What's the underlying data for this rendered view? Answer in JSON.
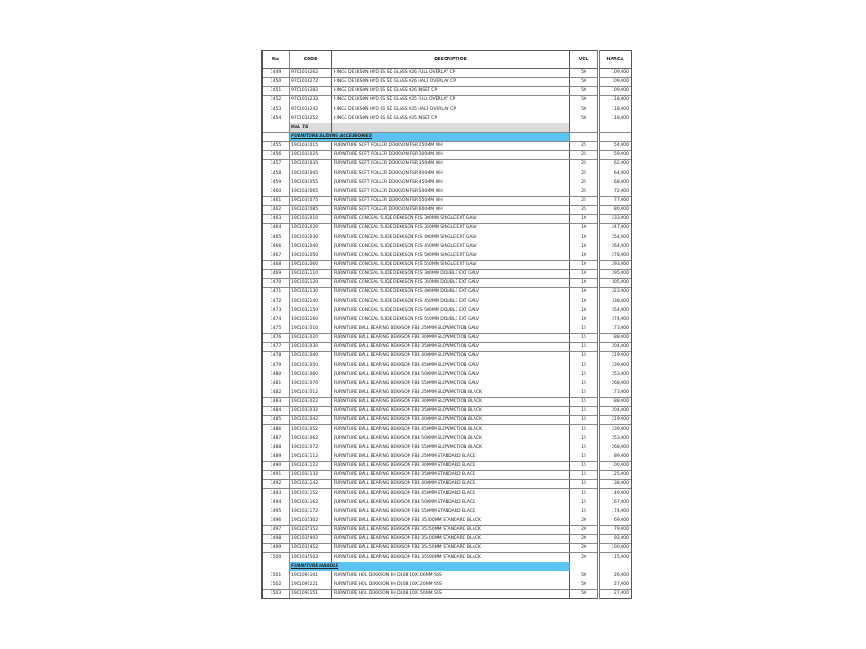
{
  "headers": {
    "no": "No",
    "code": "CODE",
    "description": "DESCRIPTION",
    "vol": "VOL",
    "harga": "HARGA"
  },
  "colors": {
    "highlight_text": "#e8202a",
    "section_bg": "#5cc4f2",
    "page_marker_bg": "#dcdcdc"
  },
  "rows": [
    {
      "no": "1449",
      "code": "9701018262",
      "desc": "HINGE DEKKSON HYD ES SD GLASS 026 FULL OVERLAY CP",
      "vol": "50",
      "harga": "109,000"
    },
    {
      "no": "1450",
      "code": "9701018272",
      "desc": "HINGE DEKKSON HYD ES SD GLASS 026 HALF OVERLAY CP",
      "vol": "50",
      "harga": "109,000"
    },
    {
      "no": "1451",
      "code": "9701018282",
      "desc": "HINGE DEKKSON HYD ES SD GLASS 026 INSET CP",
      "vol": "50",
      "harga": "109,000"
    },
    {
      "no": "1452",
      "code": "9701018232",
      "desc": "HINGE DEKKSON HYD ES SD GLASS 035 FULL OVERLAY CP",
      "vol": "50",
      "harga": "118,000"
    },
    {
      "no": "1453",
      "code": "9701018242",
      "desc": "HINGE DEKKSON HYD ES SD GLASS 035 HALF OVERLAY CP",
      "vol": "50",
      "harga": "118,000"
    },
    {
      "no": "1454",
      "code": "9701018252",
      "desc": "HINGE DEKKSON HYD ES SD GLASS 035 INSET CP",
      "vol": "50",
      "harga": "118,000"
    },
    {
      "type": "hal",
      "label": "Hal. 74"
    },
    {
      "type": "section",
      "label": "FURNITURE SLIDING ACCESSORIES"
    },
    {
      "no": "1455",
      "code": "1901031015",
      "desc": "FURNITURE SOFT ROLLER DEKKSON FSR 250MM WH",
      "vol": "25",
      "harga": "54,000"
    },
    {
      "no": "1456",
      "code": "1901031025",
      "desc": "FURNITURE SOFT ROLLER DEKKSON FSR 300MM WH",
      "vol": "25",
      "harga": "59,000"
    },
    {
      "no": "1457",
      "code": "1901031035",
      "desc": "FURNITURE SOFT ROLLER DEKKSON FSR 350MM WH",
      "vol": "25",
      "harga": "62,000"
    },
    {
      "no": "1458",
      "code": "1901031045",
      "desc": "FURNITURE SOFT ROLLER DEKKSON FSR 400MM WH",
      "vol": "25",
      "harga": "64,000"
    },
    {
      "no": "1459",
      "code": "1901031055",
      "desc": "FURNITURE SOFT ROLLER DEKKSON FSR 450MM WH",
      "vol": "25",
      "harga": "68,000"
    },
    {
      "no": "1460",
      "code": "1901031065",
      "desc": "FURNITURE SOFT ROLLER DEKKSON FSR 500MM WH",
      "vol": "25",
      "harga": "72,000"
    },
    {
      "no": "1461",
      "code": "1901031075",
      "desc": "FURNITURE SOFT ROLLER DEKKSON FSR 550MM WH",
      "vol": "25",
      "harga": "77,000"
    },
    {
      "no": "1462",
      "code": "1901031085",
      "desc": "FURNITURE SOFT ROLLER DEKKSON FSR 600MM WH",
      "vol": "25",
      "harga": "80,000"
    },
    {
      "no": "1463",
      "code": "1901032010",
      "desc": "FURNITURE CONCEAL SLIDE DEKKSON FCS 300MM SINGLE EXT GALV",
      "vol": "10",
      "harga": "233,000",
      "red": true
    },
    {
      "no": "1464",
      "code": "1901032020",
      "desc": "FURNITURE CONCEAL SLIDE DEKKSON FCS 350MM SINGLE EXT GALV",
      "vol": "10",
      "harga": "247,000",
      "red": true
    },
    {
      "no": "1465",
      "code": "1901032030",
      "desc": "FURNITURE CONCEAL SLIDE DEKKSON FCS 400MM SINGLE EXT GALV",
      "vol": "10",
      "harga": "254,000",
      "red": true
    },
    {
      "no": "1466",
      "code": "1901032040",
      "desc": "FURNITURE CONCEAL SLIDE DEKKSON FCS 450MM SINGLE EXT GALV",
      "vol": "10",
      "harga": "264,000",
      "red": true
    },
    {
      "no": "1467",
      "code": "1901032050",
      "desc": "FURNITURE CONCEAL SLIDE DEKKSON FCS 500MM SINGLE EXT GALV",
      "vol": "10",
      "harga": "278,000",
      "red": true
    },
    {
      "no": "1468",
      "code": "1901032060",
      "desc": "FURNITURE CONCEAL SLIDE DEKKSON FCS 550MM SINGLE EXT GALV",
      "vol": "10",
      "harga": "293,000",
      "red": true
    },
    {
      "no": "1469",
      "code": "1901032110",
      "desc": "FURNITURE CONCEAL SLIDE DEKKSON FCS 300MM DOUBLE EXT GALV",
      "vol": "10",
      "harga": "295,000",
      "red": true
    },
    {
      "no": "1470",
      "code": "1901032120",
      "desc": "FURNITURE CONCEAL SLIDE DEKKSON FCS 350MM DOUBLE EXT GALV",
      "vol": "10",
      "harga": "305,000",
      "red": true
    },
    {
      "no": "1471",
      "code": "1901032130",
      "desc": "FURNITURE CONCEAL SLIDE DEKKSON FCS 400MM DOUBLE EXT GALV",
      "vol": "10",
      "harga": "323,000",
      "red": true
    },
    {
      "no": "1472",
      "code": "1901032140",
      "desc": "FURNITURE CONCEAL SLIDE DEKKSON FCS 450MM DOUBLE EXT GALV",
      "vol": "10",
      "harga": "338,000",
      "red": true
    },
    {
      "no": "1473",
      "code": "1901032150",
      "desc": "FURNITURE CONCEAL SLIDE DEKKSON FCS 500MM DOUBLE EXT GALV",
      "vol": "10",
      "harga": "354,000",
      "red": true
    },
    {
      "no": "1474",
      "code": "1901032160",
      "desc": "FURNITURE CONCEAL SLIDE DEKKSON FCS 550MM DOUBLE EXT GALV",
      "vol": "10",
      "harga": "374,000",
      "red": true
    },
    {
      "no": "1475",
      "code": "1901033010",
      "desc": "FURNITURE BALL BEARING DEKKSON FBB 250MM SLOWMOTION GALV",
      "vol": "15",
      "harga": "173,000"
    },
    {
      "no": "1476",
      "code": "1901033020",
      "desc": "FURNITURE BALL BEARING DEKKSON FBB 300MM SLOWMOTION GALV",
      "vol": "15",
      "harga": "188,000"
    },
    {
      "no": "1477",
      "code": "1901033030",
      "desc": "FURNITURE BALL BEARING DEKKSON FBB 350MM SLOWMOTION GALV",
      "vol": "15",
      "harga": "204,000"
    },
    {
      "no": "1478",
      "code": "1901033040",
      "desc": "FURNITURE BALL BEARING DEKKSON FBB 400MM SLOWMOTION GALV",
      "vol": "15",
      "harga": "219,000"
    },
    {
      "no": "1479",
      "code": "1901033050",
      "desc": "FURNITURE BALL BEARING DEKKSON FBB 450MM SLOWMOTION GALV",
      "vol": "15",
      "harga": "239,000"
    },
    {
      "no": "1480",
      "code": "1901033060",
      "desc": "FURNITURE BALL BEARING DEKKSON FBB 500MM SLOWMOTION GALV",
      "vol": "15",
      "harga": "253,000"
    },
    {
      "no": "1481",
      "code": "1901033070",
      "desc": "FURNITURE BALL BEARING DEKKSON FBB 550MM SLOWMOTION GALV",
      "vol": "15",
      "harga": "268,000"
    },
    {
      "no": "1482",
      "code": "1901033012",
      "desc": "FURNITURE BALL BEARING DEKKSON FBB 250MM SLOWMOTION BLACK",
      "vol": "15",
      "harga": "173,000"
    },
    {
      "no": "1483",
      "code": "1901033022",
      "desc": "FURNITURE BALL BEARING DEKKSON FBB 300MM SLOWMOTION BLACK",
      "vol": "15",
      "harga": "188,000"
    },
    {
      "no": "1484",
      "code": "1901033032",
      "desc": "FURNITURE BALL BEARING DEKKSON FBB 350MM SLOWMOTION BLACK",
      "vol": "15",
      "harga": "204,000"
    },
    {
      "no": "1485",
      "code": "1901033042",
      "desc": "FURNITURE BALL BEARING DEKKSON FBB 400MM SLOWMOTION BLACK",
      "vol": "15",
      "harga": "219,000"
    },
    {
      "no": "1486",
      "code": "1901033052",
      "desc": "FURNITURE BALL BEARING DEKKSON FBB 450MM SLOWMOTION BLACK",
      "vol": "15",
      "harga": "239,000"
    },
    {
      "no": "1487",
      "code": "1901033062",
      "desc": "FURNITURE BALL BEARING DEKKSON FBB 500MM SLOWMOTION BLACK",
      "vol": "15",
      "harga": "253,000"
    },
    {
      "no": "1488",
      "code": "1901033072",
      "desc": "FURNITURE BALL BEARING DEKKSON FBB 550MM SLOWMOTION BLACK",
      "vol": "15",
      "harga": "268,000"
    },
    {
      "no": "1489",
      "code": "1901033112",
      "desc": "FURNITURE BALL BEARING DEKKSON FBB 250MM STANDARD BLACK",
      "vol": "15",
      "harga": "89,000"
    },
    {
      "no": "1490",
      "code": "1901033122",
      "desc": "FURNITURE BALL BEARING DEKKSON FBB 300MM STANDARD BLACK",
      "vol": "15",
      "harga": "100,000"
    },
    {
      "no": "1491",
      "code": "1901033132",
      "desc": "FURNITURE BALL BEARING DEKKSON FBB 350MM STANDARD BLACK",
      "vol": "15",
      "harga": "125,000"
    },
    {
      "no": "1492",
      "code": "1901033142",
      "desc": "FURNITURE BALL BEARING DEKKSON FBB 400MM STANDARD BLACK",
      "vol": "15",
      "harga": "138,000"
    },
    {
      "no": "1493",
      "code": "1901033152",
      "desc": "FURNITURE BALL BEARING DEKKSON FBB 450MM STANDARD BLACK",
      "vol": "15",
      "harga": "149,000"
    },
    {
      "no": "1494",
      "code": "1901033162",
      "desc": "FURNITURE BALL BEARING DEKKSON FBB 500MM STANDARD BLACK",
      "vol": "15",
      "harga": "167,000"
    },
    {
      "no": "1495",
      "code": "1901033172",
      "desc": "FURNITURE BALL BEARING DEKKSON FBB 550MM STANDARD BLACK",
      "vol": "15",
      "harga": "174,000"
    },
    {
      "no": "1496",
      "code": "1901035302",
      "desc": "FURNITURE BALL BEARING DEKKSON FBB 35300MM STANDARD BLACK",
      "vol": "20",
      "harga": "69,000"
    },
    {
      "no": "1497",
      "code": "1901035352",
      "desc": "FURNITURE BALL BEARING DEKKSON FBB 35350MM STANDARD BLACK",
      "vol": "20",
      "harga": "79,000"
    },
    {
      "no": "1498",
      "code": "1901035402",
      "desc": "FURNITURE BALL BEARING DEKKSON FBB 35400MM STANDARD BLACK",
      "vol": "20",
      "harga": "92,000"
    },
    {
      "no": "1499",
      "code": "1901035452",
      "desc": "FURNITURE BALL BEARING DEKKSON FBB 35450MM STANDARD BLACK",
      "vol": "20",
      "harga": "100,000"
    },
    {
      "no": "1500",
      "code": "1901035502",
      "desc": "FURNITURE BALL BEARING DEKKSON FBB 35500MM STANDARD BLACK",
      "vol": "20",
      "harga": "115,000"
    },
    {
      "type": "section",
      "label": "FURNITURE HANDLE"
    },
    {
      "no": "1501",
      "code": "1901091101",
      "desc": "FURNITURE HDL DEKKSON FH D108 10X100MM SSS",
      "vol": "50",
      "harga": "26,000"
    },
    {
      "no": "1502",
      "code": "1901091221",
      "desc": "FURNITURE HDL DEKKSON FH D108 10X120MM SSS",
      "vol": "50",
      "harga": "27,000"
    },
    {
      "no": "1503",
      "code": "1901091151",
      "desc": "FURNITURE HDL DEKKSON FH D108 10X150MM SSS",
      "vol": "50",
      "harga": "27,000"
    }
  ]
}
